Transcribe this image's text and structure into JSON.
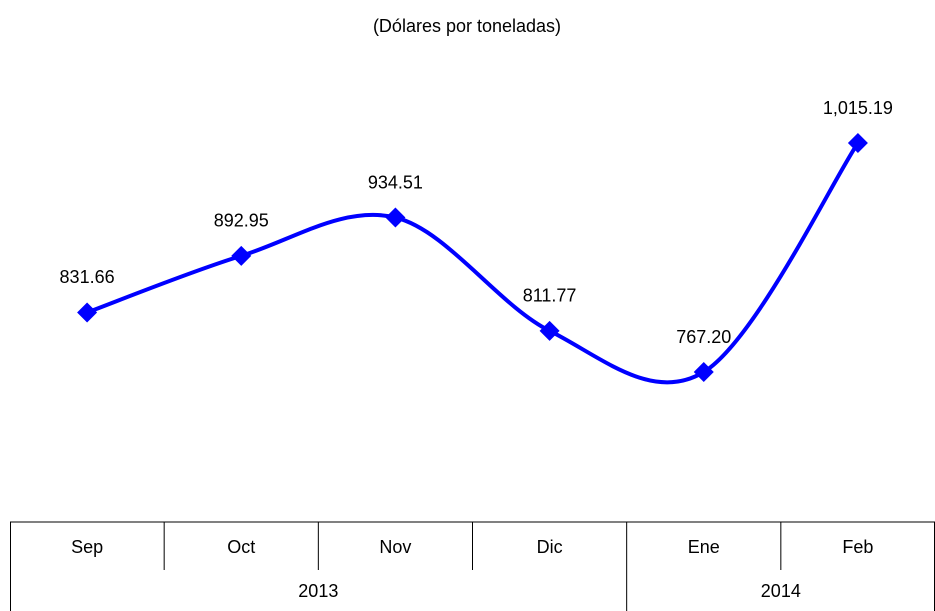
{
  "chart_data": {
    "type": "line",
    "title": "(Dólares por toneladas)",
    "category_groups": [
      {
        "label": "2013",
        "categories": [
          "Sep",
          "Oct",
          "Nov",
          "Dic"
        ]
      },
      {
        "label": "2014",
        "categories": [
          "Ene",
          "Feb"
        ]
      }
    ],
    "series": [
      {
        "color": "#0000ff",
        "values": [
          831.66,
          892.95,
          934.51,
          811.77,
          767.2,
          1015.19
        ],
        "value_labels": [
          "831.66",
          "892.95",
          "934.51",
          "811.77",
          "767.20",
          "1,015.19"
        ]
      }
    ]
  }
}
